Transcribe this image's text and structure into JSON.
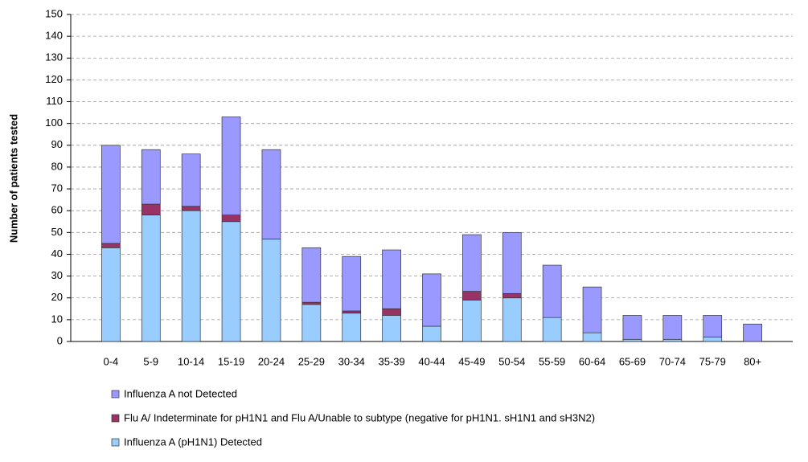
{
  "chart_data": {
    "type": "stacked-bar",
    "y_label": "Number of patients tested",
    "categories": [
      "0-4",
      "5-9",
      "10-14",
      "15-19",
      "20-24",
      "25-29",
      "30-34",
      "35-39",
      "40-44",
      "45-49",
      "50-54",
      "55-59",
      "60-64",
      "65-69",
      "70-74",
      "75-79",
      "80+"
    ],
    "series": [
      {
        "name": "Influenza A (pH1N1) Detected",
        "color": "#99ccff",
        "values": [
          43,
          58,
          60,
          55,
          47,
          17,
          13,
          12,
          7,
          19,
          20,
          11,
          4,
          1,
          1,
          2,
          0
        ]
      },
      {
        "name": "Flu A/ Indeterminate for pH1N1 and Flu A/Unable to subtype (negative for pH1N1. sH1N1 and sH3N2)",
        "color": "#993366",
        "values": [
          2,
          5,
          2,
          3,
          0,
          1,
          1,
          3,
          0,
          4,
          2,
          0,
          0,
          0,
          0,
          0,
          0
        ]
      },
      {
        "name": "Influenza A not Detected",
        "color": "#9999ff",
        "values": [
          45,
          25,
          24,
          45,
          41,
          25,
          25,
          27,
          24,
          26,
          28,
          24,
          21,
          11,
          11,
          10,
          8
        ]
      }
    ],
    "ylim": [
      0,
      150
    ],
    "yticks": [
      0,
      10,
      20,
      30,
      40,
      50,
      60,
      70,
      80,
      90,
      100,
      110,
      120,
      130,
      140,
      150
    ],
    "grid": true
  }
}
